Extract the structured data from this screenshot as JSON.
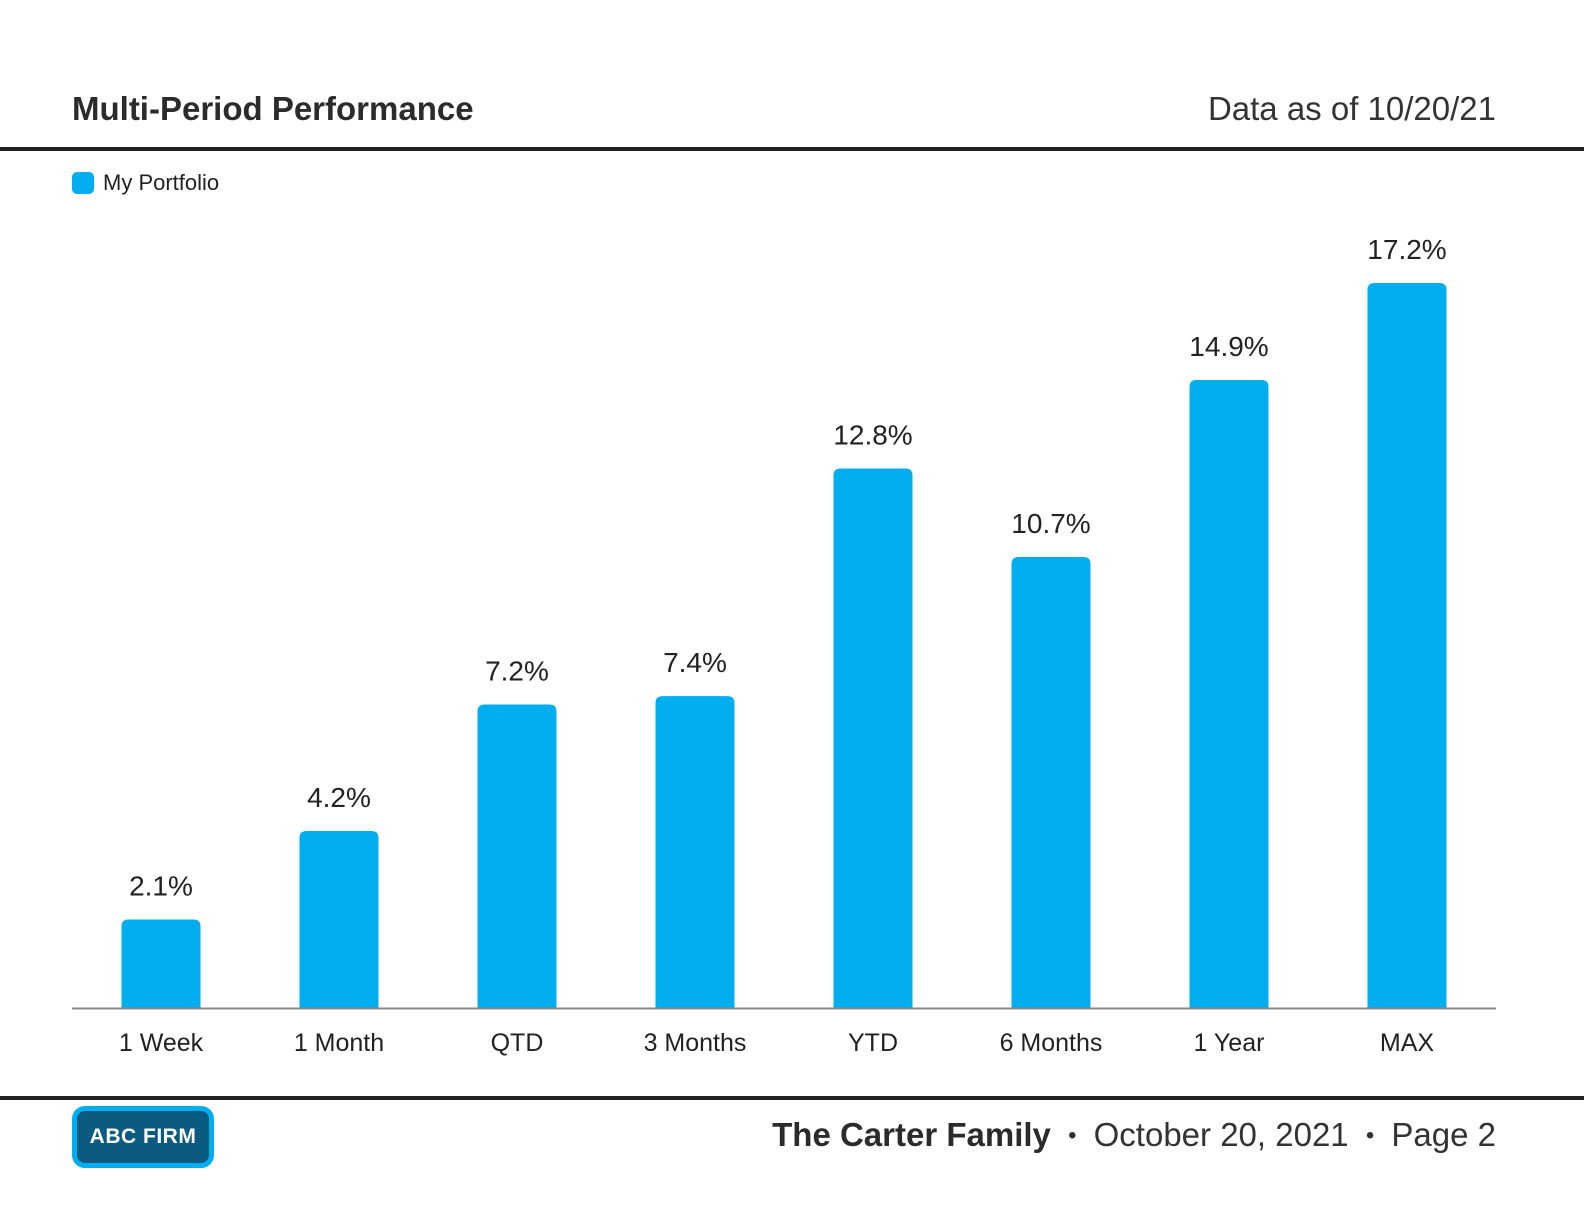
{
  "header": {
    "title": "Multi-Period Performance",
    "data_date": "Data as of 10/20/21"
  },
  "legend": {
    "label": "My Portfolio",
    "color": "#00aeef"
  },
  "chart_data": {
    "type": "bar",
    "title": "",
    "xlabel": "",
    "ylabel": "",
    "categories": [
      "1 Week",
      "1 Month",
      "QTD",
      "3 Months",
      "YTD",
      "6 Months",
      "1 Year",
      "MAX"
    ],
    "series": [
      {
        "name": "My Portfolio",
        "values": [
          2.1,
          4.2,
          7.2,
          7.4,
          12.8,
          10.7,
          14.9,
          17.2
        ],
        "labels": [
          "2.1%",
          "4.2%",
          "7.2%",
          "7.4%",
          "12.8%",
          "10.7%",
          "14.9%",
          "17.2%"
        ],
        "color": "#00aeef"
      }
    ],
    "ylim": [
      0,
      17.2
    ],
    "grid": false,
    "legend_position": "top-left"
  },
  "footer": {
    "logo_text": "ABC FIRM",
    "client": "The Carter Family",
    "separator": "•",
    "date": "October 20, 2021",
    "page": "Page 2"
  }
}
